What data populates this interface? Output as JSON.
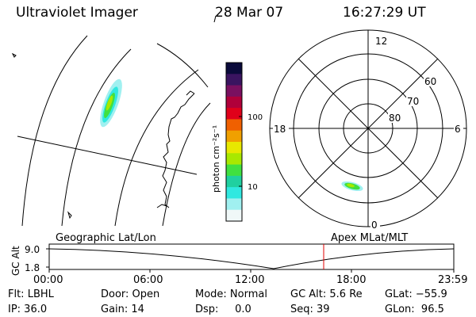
{
  "header": {
    "title": "Ultraviolet Imager",
    "date": "28 Mar 07",
    "time": "16:27:29 UT"
  },
  "colorbar": {
    "unit_label": "photon cm⁻²s⁻¹",
    "ticks": [
      "100",
      "10"
    ],
    "colors": [
      "#0a0a3a",
      "#3a1460",
      "#7a1060",
      "#b0003a",
      "#e0001a",
      "#f06000",
      "#f0a000",
      "#e8e800",
      "#a8e800",
      "#40e040",
      "#20d0a0",
      "#30e8e0",
      "#a0f0f0",
      "#f0f8f8"
    ]
  },
  "polar_plot": {
    "mlt_labels": [
      "12",
      "18",
      "6",
      "0"
    ],
    "lat_labels": [
      "60",
      "70",
      "80"
    ]
  },
  "timeline": {
    "left_title": "Geographic Lat/Lon",
    "right_title": "Apex  MLat/MLT",
    "axis_label": "GC Alt",
    "y_ticks": [
      "9.0",
      "1.8"
    ],
    "x_ticks": [
      "00:00",
      "06:00",
      "12:00",
      "18:00",
      "23:59"
    ],
    "marker_color": "#e00000"
  },
  "info": {
    "row1": [
      "Flt: LBHL",
      "Door: Open",
      "Mode: Normal",
      "GC Alt: 5.6 Re",
      "GLat: −55.9"
    ],
    "row2": [
      "IP: 36.0",
      "Gain: 14",
      "Dsp:     0.0",
      "Seq: 39",
      "GLon:  96.5"
    ]
  }
}
